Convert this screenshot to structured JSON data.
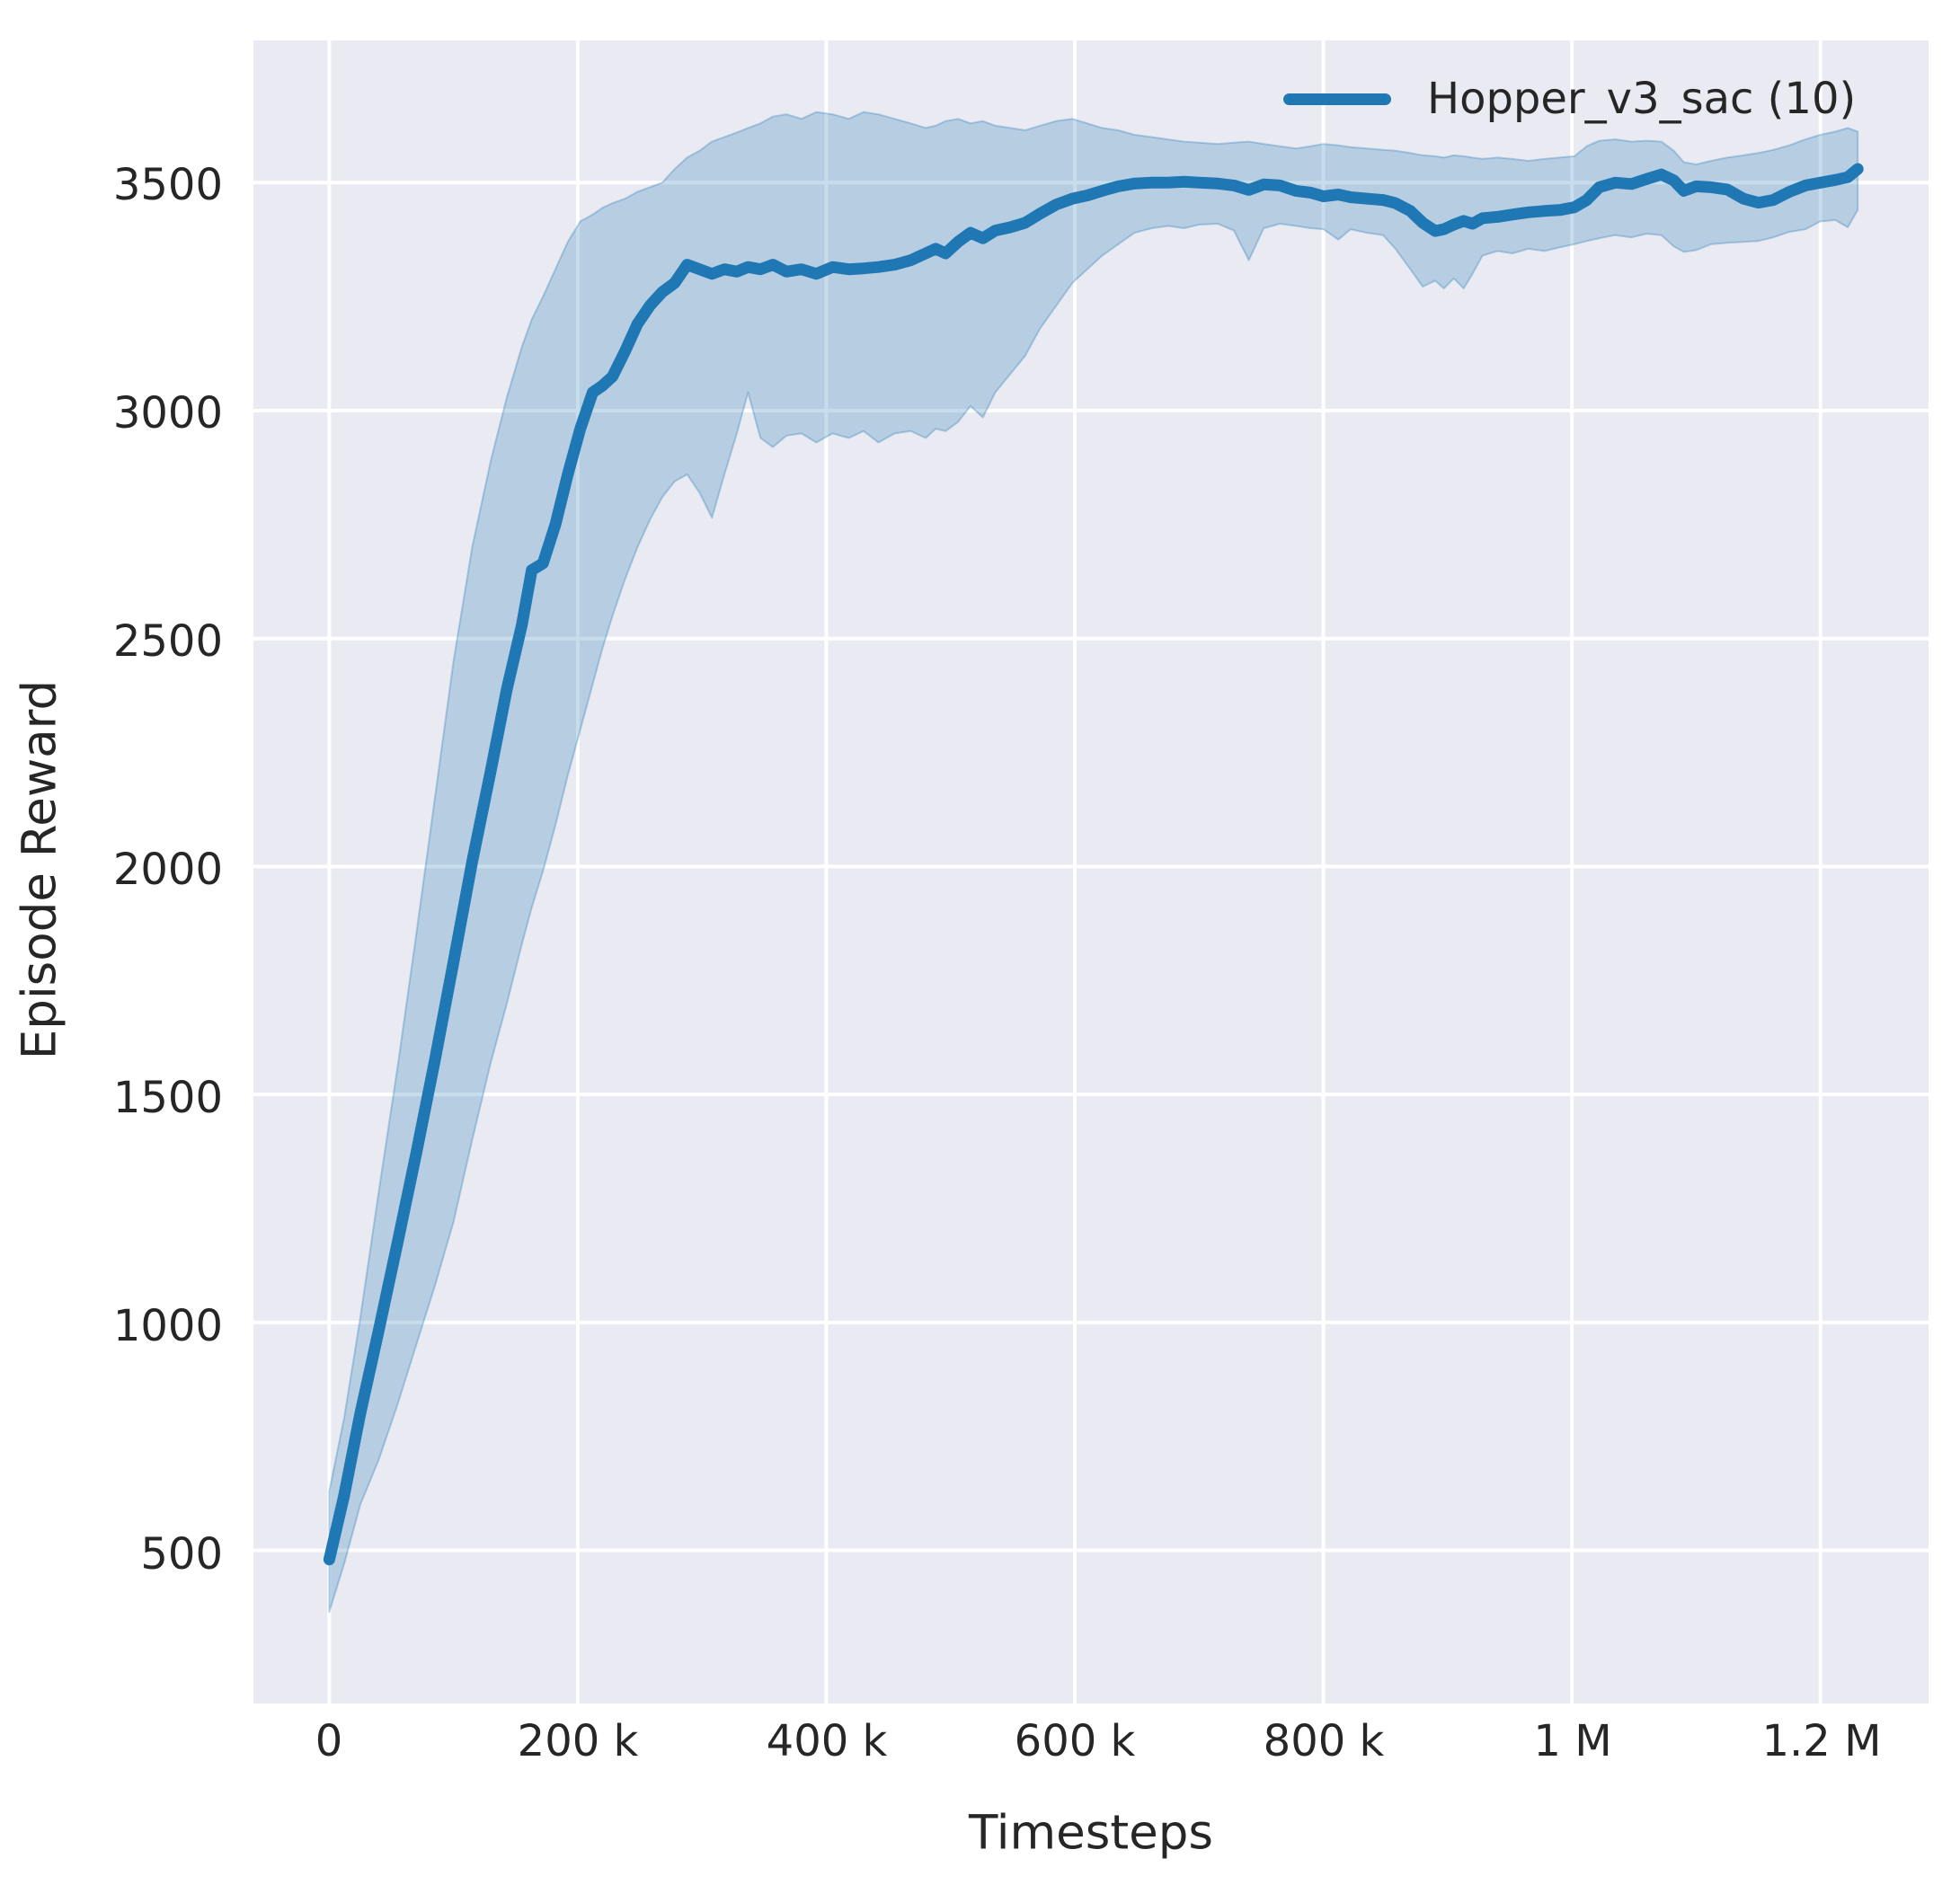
{
  "figure": {
    "background": "#ffffff",
    "plot_background": "#eaeaf2",
    "grid_color": "#ffffff",
    "text_color": "#262626"
  },
  "legend": {
    "label": "Hopper_v3_sac (10)",
    "line_color": "#1f77b4"
  },
  "axes": {
    "x_label": "Timesteps",
    "y_label": "Episode Reward"
  },
  "chart_data": {
    "type": "line",
    "title": "",
    "xlabel": "Timesteps",
    "ylabel": "Episode Reward",
    "grid": true,
    "legend_entries": [
      "Hopper_v3_sac (10)"
    ],
    "legend_position": "upper right",
    "line_color": "#1f77b4",
    "band_fill": "rgba(31,119,180,0.25)",
    "band_edge": "rgba(31,119,180,0.30)",
    "x_tick_labels": [
      "0",
      "200 k",
      "400 k",
      "600 k",
      "800 k",
      "1 M",
      "1.2 M"
    ],
    "x_tick_values_k": [
      0,
      200,
      400,
      600,
      800,
      1000,
      1200
    ],
    "y_tick_labels": [
      "3500",
      "3000",
      "2500",
      "2000",
      "1500",
      "1000",
      "500"
    ],
    "y_tick_values": [
      3500,
      3000,
      2500,
      2000,
      1500,
      1000,
      500
    ],
    "xlim_k": [
      -61,
      1287
    ],
    "ylim": [
      164,
      3812
    ],
    "x_units": "timesteps (k = thousand, M = million)",
    "series_name": "Hopper_v3_sac (10)",
    "points_format": [
      "t_k",
      "lower",
      "mean",
      "upper"
    ],
    "points": [
      [
        0,
        365,
        480,
        630
      ],
      [
        12,
        470,
        620,
        790
      ],
      [
        25,
        600,
        800,
        1010
      ],
      [
        40,
        700,
        985,
        1290
      ],
      [
        55,
        820,
        1175,
        1560
      ],
      [
        70,
        950,
        1370,
        1850
      ],
      [
        85,
        1080,
        1575,
        2150
      ],
      [
        100,
        1220,
        1790,
        2450
      ],
      [
        115,
        1400,
        2010,
        2700
      ],
      [
        130,
        1570,
        2210,
        2890
      ],
      [
        143,
        1700,
        2390,
        3030
      ],
      [
        155,
        1830,
        2530,
        3140
      ],
      [
        163,
        1910,
        2650,
        3200
      ],
      [
        172,
        1990,
        2665,
        3250
      ],
      [
        182,
        2090,
        2750,
        3310
      ],
      [
        192,
        2200,
        2860,
        3370
      ],
      [
        202,
        2300,
        2960,
        3415
      ],
      [
        212,
        2400,
        3040,
        3430
      ],
      [
        220,
        2480,
        3055,
        3445
      ],
      [
        228,
        2550,
        3075,
        3455
      ],
      [
        238,
        2630,
        3130,
        3465
      ],
      [
        248,
        2700,
        3190,
        3480
      ],
      [
        258,
        2760,
        3230,
        3490
      ],
      [
        268,
        2810,
        3260,
        3500
      ],
      [
        278,
        2845,
        3280,
        3530
      ],
      [
        288,
        2860,
        3320,
        3555
      ],
      [
        298,
        2820,
        3310,
        3570
      ],
      [
        308,
        2765,
        3300,
        3590
      ],
      [
        318,
        2860,
        3310,
        3600
      ],
      [
        328,
        2950,
        3305,
        3610
      ],
      [
        337,
        3040,
        3315,
        3620
      ],
      [
        347,
        2940,
        3310,
        3630
      ],
      [
        357,
        2920,
        3320,
        3645
      ],
      [
        368,
        2945,
        3305,
        3650
      ],
      [
        380,
        2950,
        3310,
        3640
      ],
      [
        392,
        2930,
        3300,
        3655
      ],
      [
        405,
        2950,
        3315,
        3650
      ],
      [
        418,
        2940,
        3310,
        3640
      ],
      [
        430,
        2955,
        3312,
        3655
      ],
      [
        442,
        2930,
        3315,
        3650
      ],
      [
        455,
        2950,
        3320,
        3640
      ],
      [
        468,
        2955,
        3330,
        3630
      ],
      [
        480,
        2940,
        3345,
        3620
      ],
      [
        488,
        2960,
        3355,
        3625
      ],
      [
        496,
        2955,
        3345,
        3635
      ],
      [
        506,
        2975,
        3370,
        3640
      ],
      [
        516,
        3010,
        3390,
        3630
      ],
      [
        526,
        2985,
        3378,
        3635
      ],
      [
        536,
        3040,
        3395,
        3625
      ],
      [
        548,
        3080,
        3402,
        3620
      ],
      [
        560,
        3120,
        3412,
        3615
      ],
      [
        572,
        3180,
        3432,
        3625
      ],
      [
        585,
        3230,
        3452,
        3635
      ],
      [
        598,
        3280,
        3465,
        3640
      ],
      [
        610,
        3310,
        3472,
        3630
      ],
      [
        622,
        3340,
        3482,
        3620
      ],
      [
        635,
        3365,
        3492,
        3615
      ],
      [
        648,
        3390,
        3498,
        3605
      ],
      [
        662,
        3400,
        3500,
        3600
      ],
      [
        675,
        3405,
        3500,
        3595
      ],
      [
        688,
        3400,
        3502,
        3590
      ],
      [
        700,
        3408,
        3500,
        3588
      ],
      [
        715,
        3410,
        3498,
        3585
      ],
      [
        728,
        3395,
        3494,
        3588
      ],
      [
        740,
        3330,
        3484,
        3590
      ],
      [
        752,
        3400,
        3496,
        3585
      ],
      [
        765,
        3410,
        3494,
        3580
      ],
      [
        778,
        3405,
        3482,
        3575
      ],
      [
        790,
        3400,
        3478,
        3580
      ],
      [
        800,
        3398,
        3470,
        3585
      ],
      [
        812,
        3375,
        3474,
        3582
      ],
      [
        822,
        3398,
        3468,
        3578
      ],
      [
        835,
        3390,
        3465,
        3575
      ],
      [
        848,
        3385,
        3462,
        3572
      ],
      [
        858,
        3355,
        3455,
        3570
      ],
      [
        870,
        3310,
        3438,
        3565
      ],
      [
        880,
        3272,
        3412,
        3560
      ],
      [
        890,
        3285,
        3394,
        3558
      ],
      [
        897,
        3268,
        3398,
        3555
      ],
      [
        905,
        3290,
        3408,
        3560
      ],
      [
        913,
        3268,
        3416,
        3558
      ],
      [
        920,
        3300,
        3410,
        3555
      ],
      [
        928,
        3340,
        3422,
        3552
      ],
      [
        940,
        3350,
        3425,
        3555
      ],
      [
        952,
        3345,
        3430,
        3552
      ],
      [
        965,
        3355,
        3435,
        3548
      ],
      [
        978,
        3350,
        3438,
        3552
      ],
      [
        990,
        3358,
        3440,
        3555
      ],
      [
        1002,
        3365,
        3446,
        3558
      ],
      [
        1012,
        3372,
        3462,
        3580
      ],
      [
        1022,
        3378,
        3490,
        3592
      ],
      [
        1035,
        3385,
        3500,
        3595
      ],
      [
        1048,
        3380,
        3497,
        3590
      ],
      [
        1060,
        3388,
        3508,
        3592
      ],
      [
        1072,
        3385,
        3518,
        3590
      ],
      [
        1082,
        3360,
        3505,
        3570
      ],
      [
        1090,
        3348,
        3482,
        3545
      ],
      [
        1100,
        3352,
        3492,
        3540
      ],
      [
        1112,
        3365,
        3490,
        3548
      ],
      [
        1125,
        3368,
        3485,
        3555
      ],
      [
        1138,
        3370,
        3465,
        3560
      ],
      [
        1150,
        3372,
        3456,
        3565
      ],
      [
        1162,
        3380,
        3462,
        3572
      ],
      [
        1175,
        3392,
        3480,
        3582
      ],
      [
        1188,
        3398,
        3494,
        3595
      ],
      [
        1200,
        3415,
        3500,
        3605
      ],
      [
        1212,
        3418,
        3506,
        3612
      ],
      [
        1222,
        3402,
        3512,
        3620
      ],
      [
        1230,
        3440,
        3530,
        3612
      ]
    ]
  }
}
